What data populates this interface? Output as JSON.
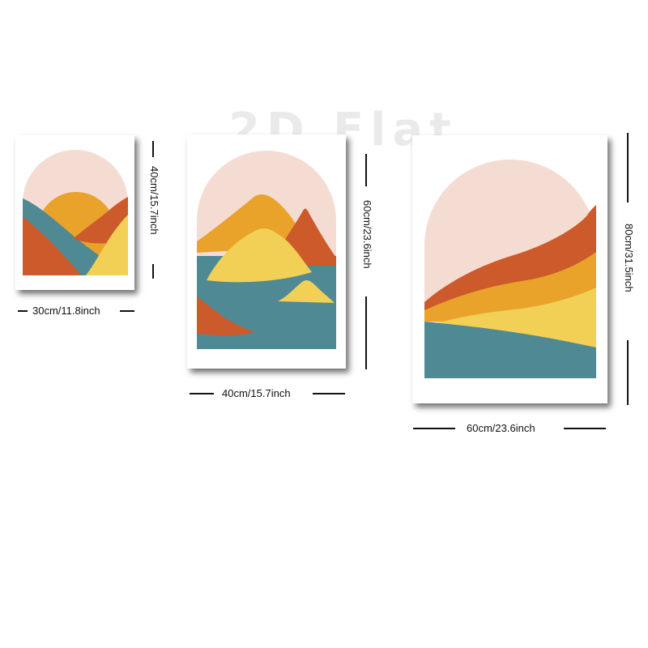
{
  "watermark": "2D Flat",
  "colors": {
    "sky": "#f4dcd3",
    "teal": "#4f8a94",
    "rust": "#cc5a2a",
    "orange": "#e9a22a",
    "yellow": "#f2cf55"
  },
  "posters": [
    {
      "width_label": "30cm/11.8inch",
      "height_label": "40cm/15.7inch"
    },
    {
      "width_label": "40cm/15.7inch",
      "height_label": "60cm/23.6inch"
    },
    {
      "width_label": "60cm/23.6inch",
      "height_label": "80cm/31.5inch"
    }
  ]
}
